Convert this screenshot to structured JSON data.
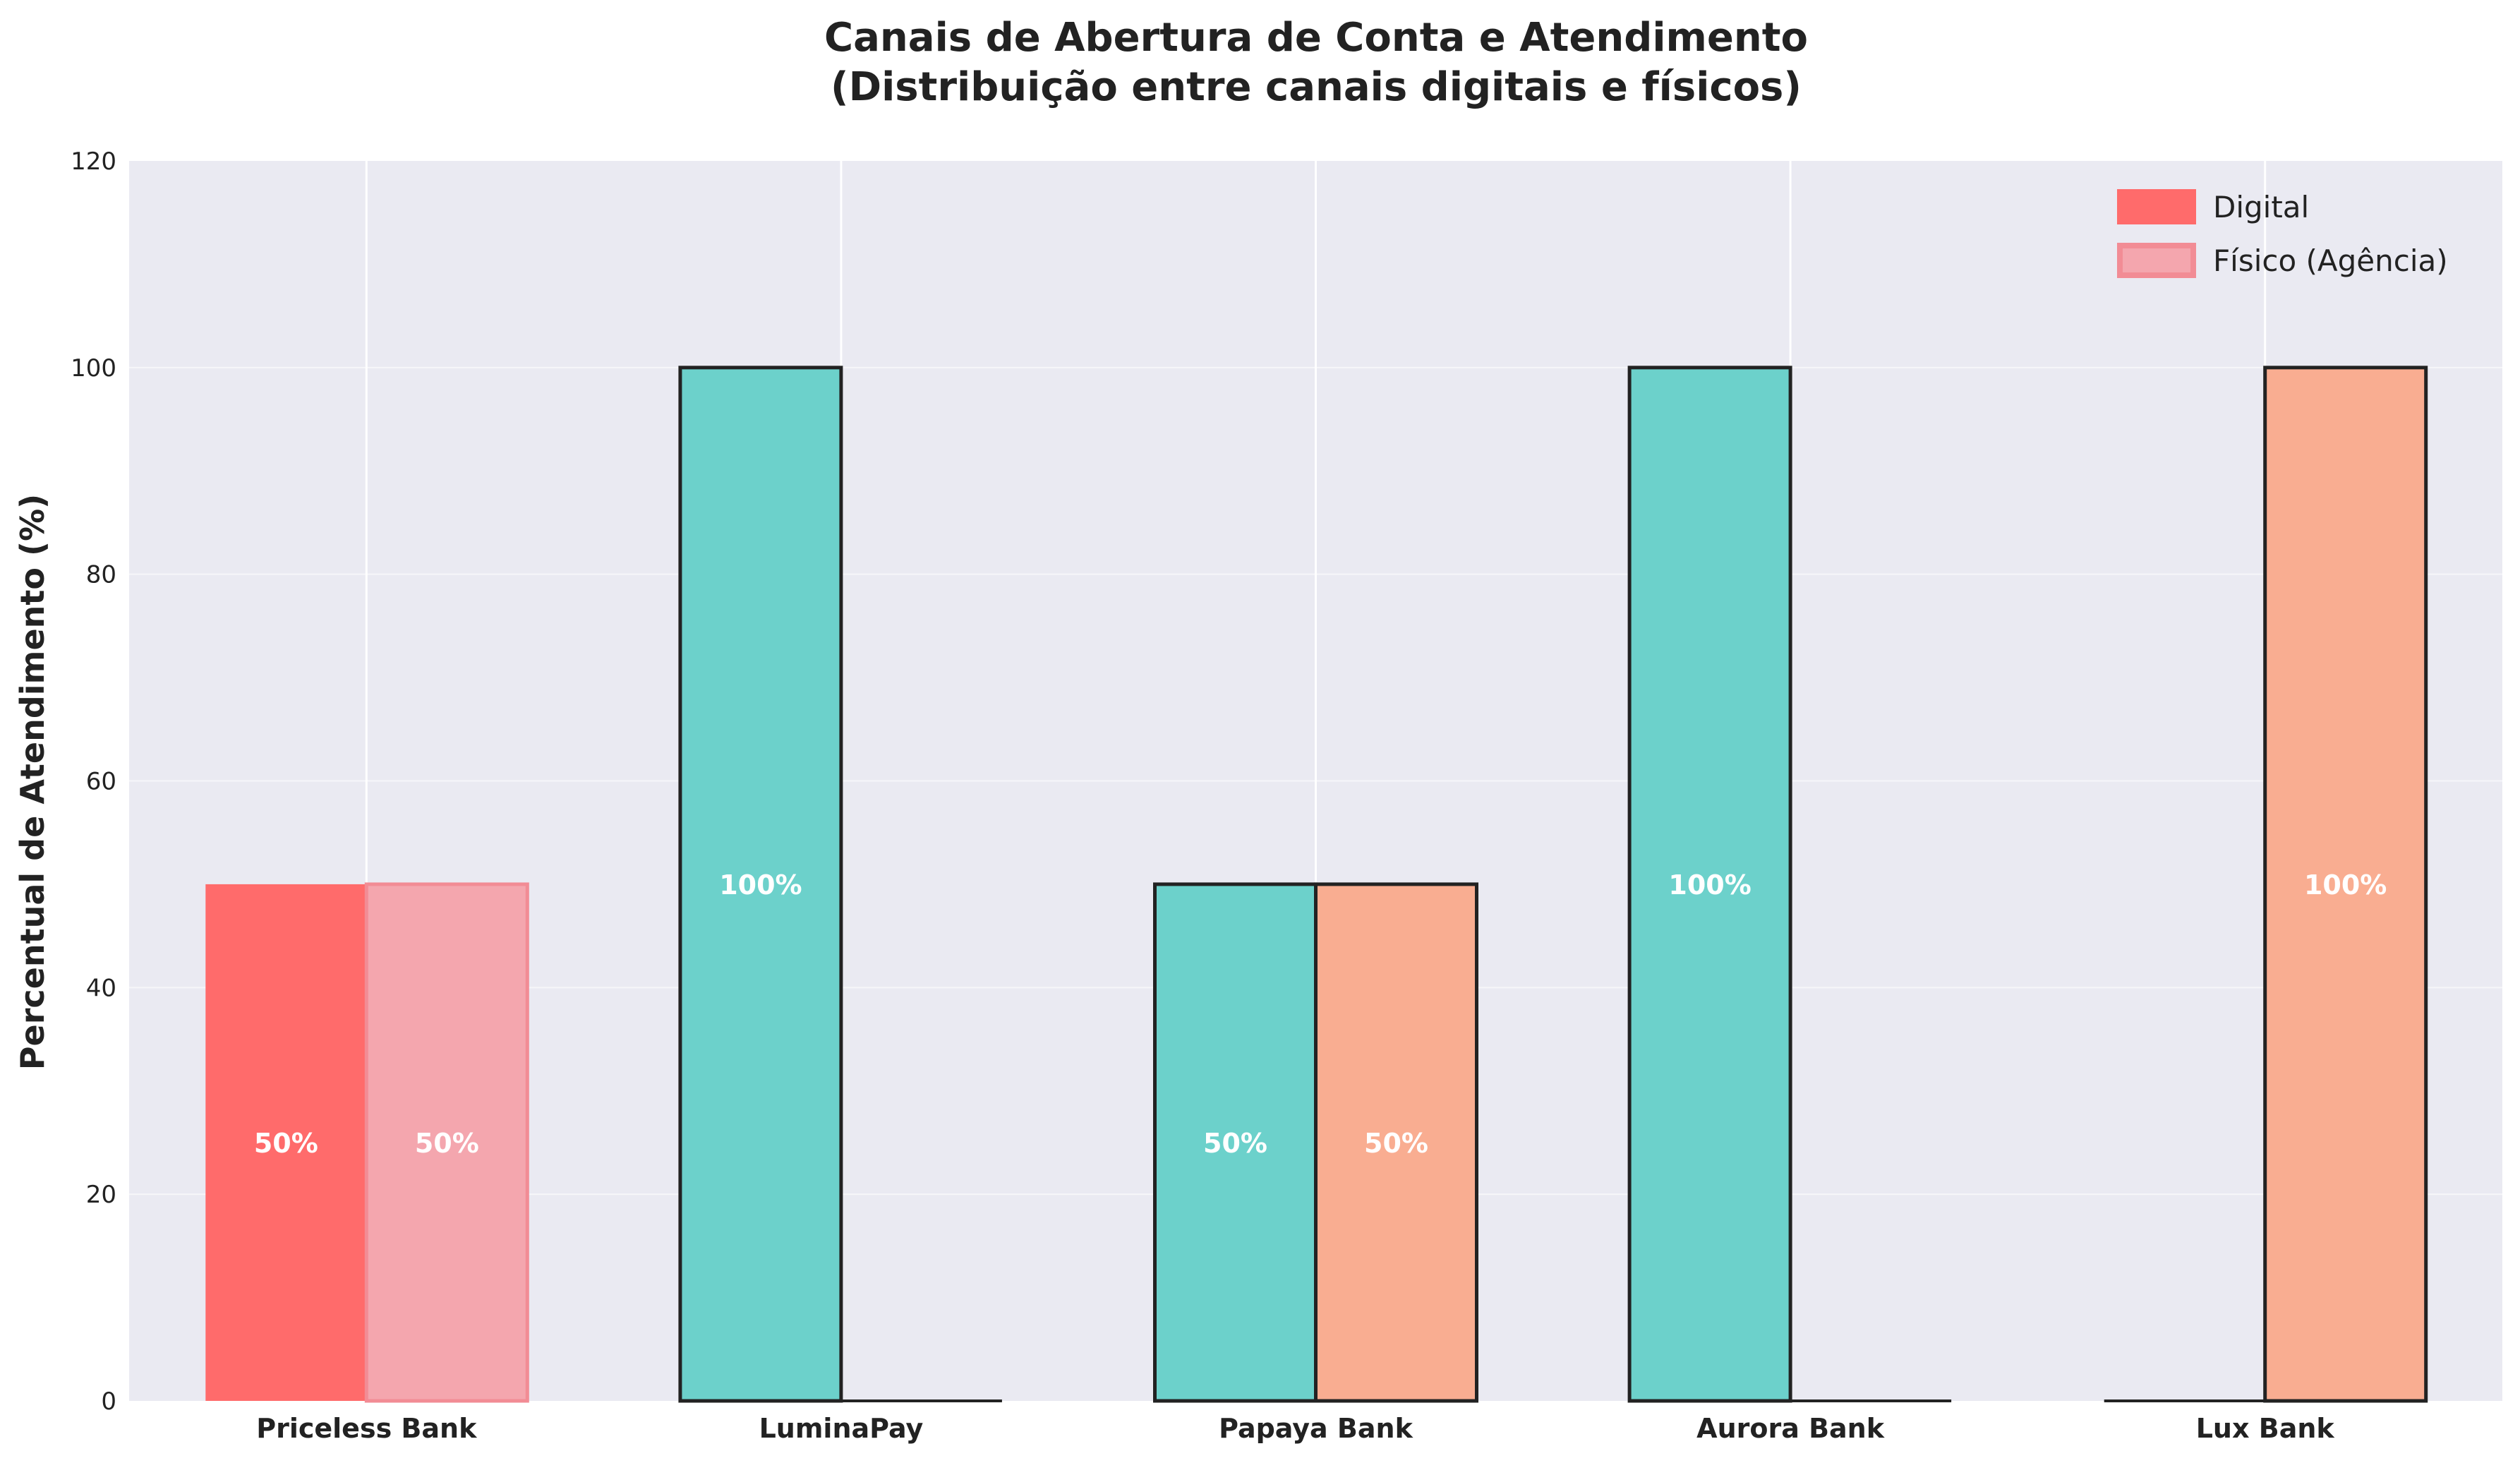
{
  "chart_data": {
    "type": "bar",
    "title_lines": [
      "Canais de Abertura de Conta e Atendimento",
      "(Distribuição entre canais digitais e físicos)"
    ],
    "xlabel": "",
    "ylabel": "Percentual de Atendimento (%)",
    "ylim": [
      0,
      120
    ],
    "yticks": [
      "0",
      "20",
      "40",
      "60",
      "80",
      "100",
      "120"
    ],
    "categories": [
      "Priceless Bank",
      "LuminaPay",
      "Papaya Bank",
      "Aurora Bank",
      "Lux Bank"
    ],
    "series": [
      {
        "name": "Digital",
        "values": [
          50,
          100,
          50,
          100,
          0
        ],
        "value_labels": [
          "50%",
          "100%",
          "50%",
          "100%",
          ""
        ]
      },
      {
        "name": "Físico (Agência)",
        "values": [
          50,
          0,
          50,
          0,
          100
        ],
        "value_labels": [
          "50%",
          "",
          "50%",
          "",
          "100%"
        ]
      }
    ],
    "bar_colors": {
      "priceless_digital": "#FF6B6B",
      "priceless_fisico": "#F4A6AE",
      "digital": "#6CD1CB",
      "fisico": "#F9AD91",
      "edge": "#222222",
      "background": "#EAEAF2",
      "grid": "#FFFFFF"
    },
    "legend": {
      "position": "top-right",
      "items": [
        "Digital",
        "Físico (Agência)"
      ]
    },
    "grid": true
  }
}
